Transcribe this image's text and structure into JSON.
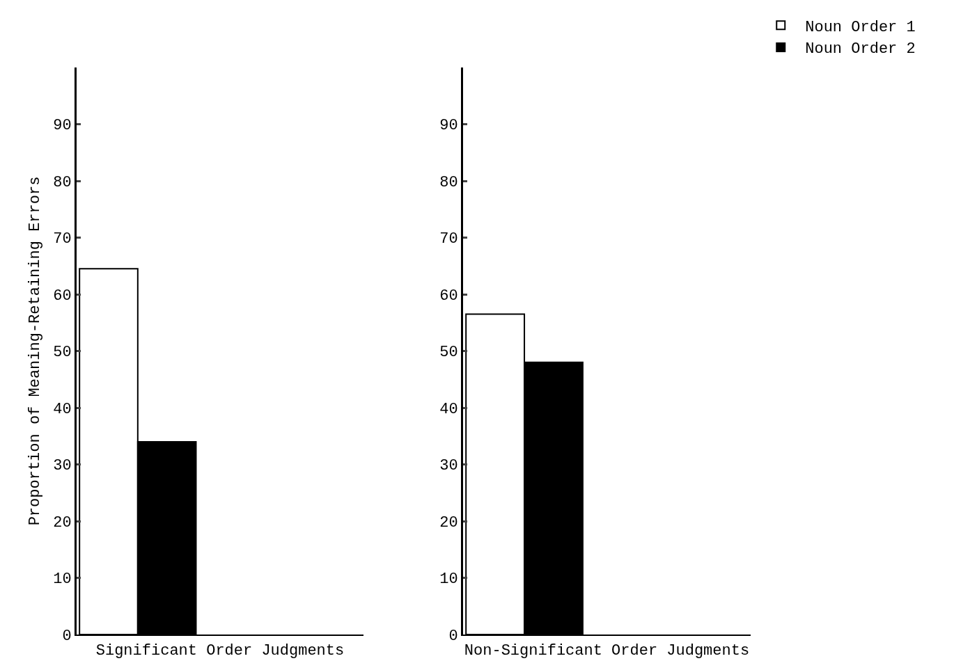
{
  "chart_data": [
    {
      "type": "bar",
      "xlabel": "Significant Order Judgments",
      "ylabel": "Proportion of Meaning-Retaining Errors",
      "categories": [
        null
      ],
      "series": [
        {
          "color": "#ffffff",
          "values": [
            64.5
          ]
        },
        {
          "color": "#000000",
          "values": [
            34
          ]
        }
      ],
      "ylim": [
        0,
        100
      ],
      "yticks": [
        0,
        10,
        20,
        30,
        40,
        50,
        60,
        70,
        80,
        90
      ],
      "grid": false,
      "legend": false
    },
    {
      "type": "bar",
      "xlabel": "Non-Significant Order Judgments",
      "categories": [
        null
      ],
      "series": [
        {
          "name": "Noun Order 1",
          "color": "#ffffff",
          "values": [
            56.5
          ]
        },
        {
          "name": "Noun Order 2",
          "color": "#000000",
          "values": [
            48
          ]
        }
      ],
      "ylim": [
        0,
        100
      ],
      "yticks": [
        0,
        10,
        20,
        30,
        40,
        50,
        60,
        70,
        80,
        90
      ],
      "grid": false,
      "legend": "top right"
    }
  ]
}
